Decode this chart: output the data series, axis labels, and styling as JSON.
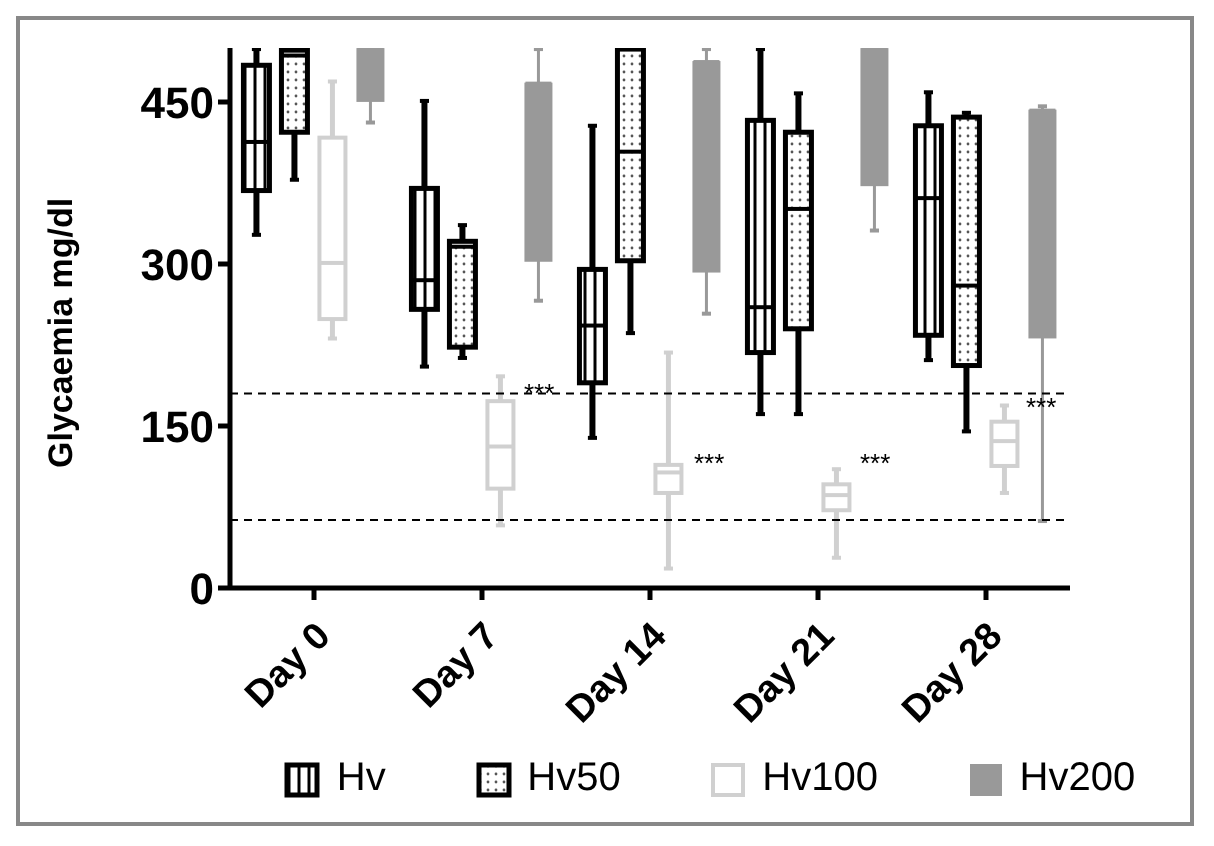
{
  "chart_data": {
    "type": "box",
    "ylabel": "Glycaemia mg/dl",
    "categories": [
      "Day 0",
      "Day 7",
      "Day 14",
      "Day 21",
      "Day 28"
    ],
    "ylim": [
      0,
      500
    ],
    "yticks": [
      0,
      150,
      300,
      450
    ],
    "grid": false,
    "legend": "bottom",
    "series": [
      {
        "name": "Hv",
        "color": "#000000",
        "boxes": [
          {
            "low": 327,
            "q1": 368,
            "median": 413,
            "q3": 484,
            "high": 499
          },
          {
            "low": 205,
            "q1": 258,
            "median": 285,
            "q3": 370,
            "high": 451
          },
          {
            "low": 139,
            "q1": 190,
            "median": 243,
            "q3": 295,
            "high": 428
          },
          {
            "low": 161,
            "q1": 218,
            "median": 260,
            "q3": 433,
            "high": 499
          },
          {
            "low": 211,
            "q1": 234,
            "median": 361,
            "q3": 428,
            "high": 459
          }
        ]
      },
      {
        "name": "Hv50",
        "color": "#000000",
        "boxes": [
          {
            "low": 378,
            "q1": 422,
            "median": 493,
            "q3": 498,
            "high": 499
          },
          {
            "low": 213,
            "q1": 223,
            "median": 316,
            "q3": 321,
            "high": 336
          },
          {
            "low": 236,
            "q1": 303,
            "median": 404,
            "q3": 499,
            "high": 499
          },
          {
            "low": 161,
            "q1": 240,
            "median": 351,
            "q3": 422,
            "high": 458
          },
          {
            "low": 145,
            "q1": 206,
            "median": 280,
            "q3": 436,
            "high": 440
          }
        ]
      },
      {
        "name": "Hv100",
        "color": "#d0d0d0",
        "boxes": [
          {
            "low": 231,
            "q1": 249,
            "median": 301,
            "q3": 417,
            "high": 469
          },
          {
            "low": 58,
            "q1": 92,
            "median": 131,
            "q3": 173,
            "high": 196
          },
          {
            "low": 18,
            "q1": 88,
            "median": 107,
            "q3": 114,
            "high": 218
          },
          {
            "low": 28,
            "q1": 72,
            "median": 86,
            "q3": 96,
            "high": 110
          },
          {
            "low": 88,
            "q1": 113,
            "median": 136,
            "q3": 154,
            "high": 169
          }
        ]
      },
      {
        "name": "Hv200",
        "color": "#999999",
        "boxes": [
          {
            "low": 431,
            "q1": 451,
            "median": 499,
            "q3": 499,
            "high": 499
          },
          {
            "low": 266,
            "q1": 303,
            "median": 467,
            "q3": 467,
            "high": 499
          },
          {
            "low": 254,
            "q1": 293,
            "median": 487,
            "q3": 487,
            "high": 499
          },
          {
            "low": 331,
            "q1": 373,
            "median": 499,
            "q3": 499,
            "high": 499
          },
          {
            "low": 62,
            "q1": 232,
            "median": 442,
            "q3": 442,
            "high": 446
          }
        ]
      }
    ],
    "ref_lines": [
      {
        "axis": "y",
        "value": 180,
        "line_style": "dashed",
        "color": "#000000"
      },
      {
        "axis": "y",
        "value": 63,
        "line_style": "dashed",
        "color": "#000000"
      }
    ],
    "annotations": [
      "***",
      "***",
      "***",
      "***"
    ]
  }
}
